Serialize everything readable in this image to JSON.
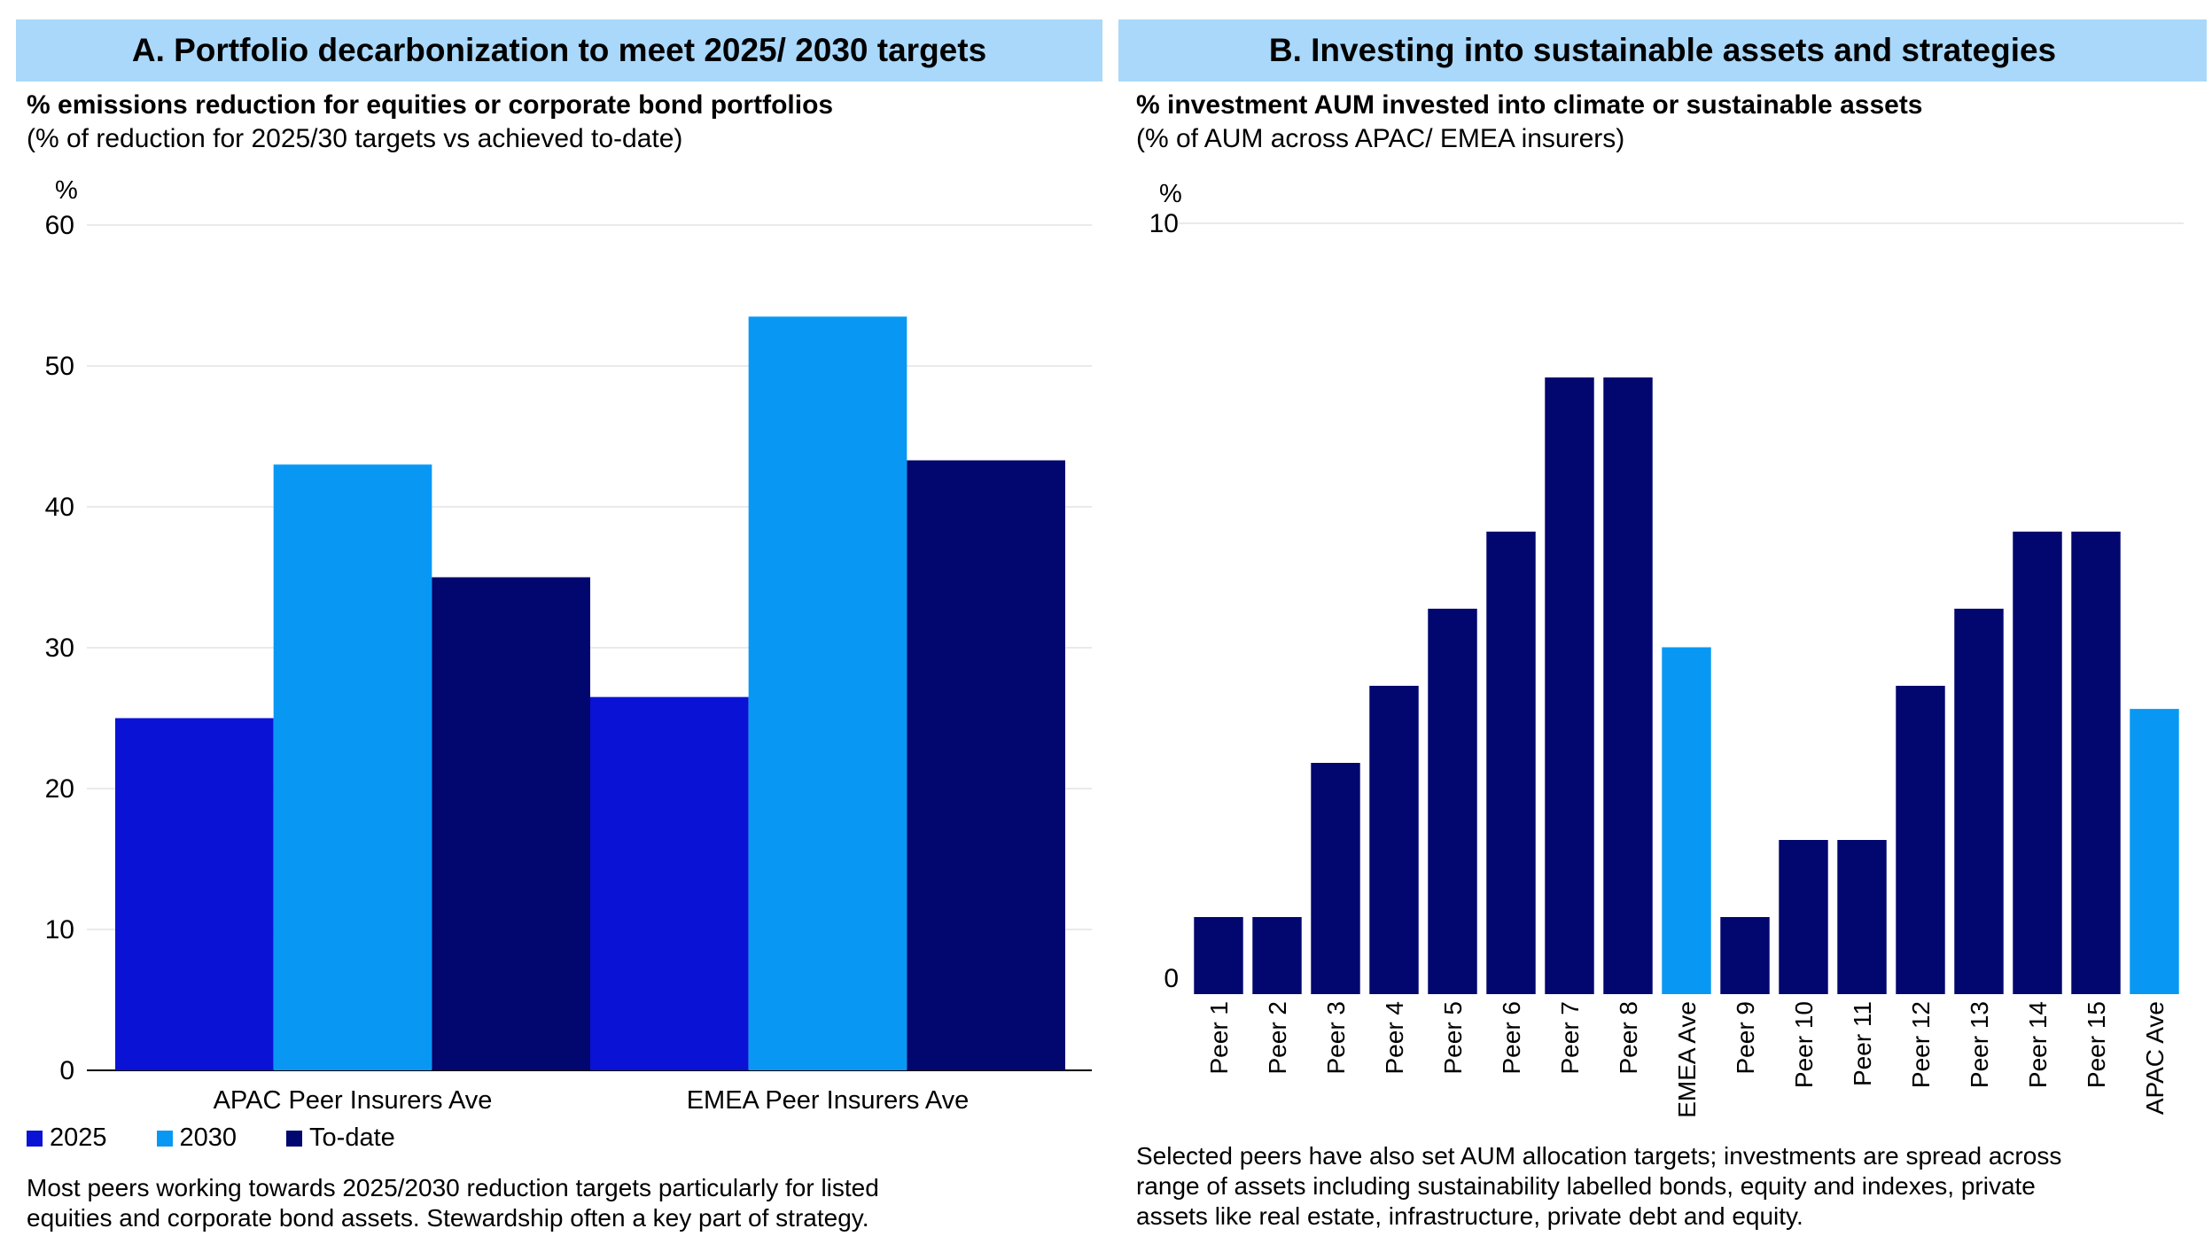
{
  "panel_a": {
    "header": "A. Portfolio decarbonization to meet 2025/ 2030 targets",
    "subtitle": "% emissions reduction for equities or corporate bond portfolios",
    "subnote": "(% of reduction for 2025/30 targets vs achieved to-date)",
    "footnote_line1": "Most peers working towards 2025/2030 reduction targets particularly for listed",
    "footnote_line2": "equities and corporate bond assets. Stewardship often a key part of strategy."
  },
  "panel_b": {
    "header": "B. Investing into sustainable assets and strategies",
    "subtitle": "% investment AUM invested into climate or sustainable assets",
    "subnote": "(% of AUM across APAC/ EMEA insurers)",
    "footnote_line1": "Selected peers have also set AUM allocation targets; investments are spread across",
    "footnote_line2": "range of assets including sustainability labelled bonds, equity and indexes, private",
    "footnote_line3": "assets like real estate, infrastructure, private debt and equity."
  },
  "colors": {
    "c2025": "#0a12d6",
    "c2030": "#0898f4",
    "todate": "#02066f",
    "average": "#0898f4",
    "grid": "#e3e3e3",
    "header_bg": "#a9d8fb"
  },
  "chart_data": [
    {
      "type": "bar",
      "title": "% emissions reduction for equities or corporate bond portfolios",
      "ylabel": "%",
      "ylim": [
        0,
        60
      ],
      "yticks": [
        0,
        10,
        20,
        30,
        40,
        50,
        60
      ],
      "categories": [
        "APAC Peer Insurers Ave",
        "EMEA Peer Insurers Ave"
      ],
      "series": [
        {
          "name": "2025",
          "values": [
            25,
            26.5
          ]
        },
        {
          "name": "2030",
          "values": [
            43,
            53.5
          ]
        },
        {
          "name": "To-date",
          "values": [
            35,
            43.3
          ]
        }
      ],
      "legend": "bottom-left"
    },
    {
      "type": "bar",
      "title": "% investment AUM invested into climate or sustainable assets",
      "ylabel": "%",
      "ylim": [
        0,
        10
      ],
      "yticks": [
        0,
        10
      ],
      "categories": [
        "Peer 1",
        "Peer 2",
        "Peer 3",
        "Peer 4",
        "Peer 5",
        "Peer 6",
        "Peer 7",
        "Peer 8",
        "EMEA Ave",
        "Peer 9",
        "Peer 10",
        "Peer 11",
        "Peer 12",
        "Peer 13",
        "Peer 14",
        "Peer 15",
        "APAC Ave"
      ],
      "values": [
        1,
        1,
        3,
        4,
        5,
        6,
        8,
        8,
        4.5,
        1,
        2,
        2,
        4,
        5,
        6,
        6,
        3.7
      ],
      "highlight": [
        "EMEA Ave",
        "APAC Ave"
      ]
    }
  ]
}
